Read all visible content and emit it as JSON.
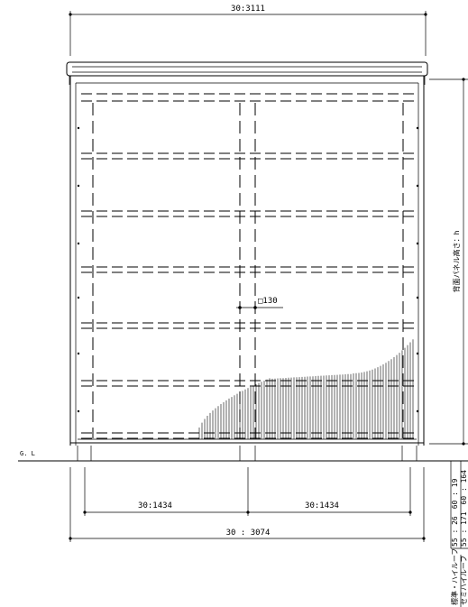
{
  "dimensions": {
    "top_width": "30:3111",
    "bottom_left": "30:1434",
    "bottom_right": "30:1434",
    "bottom_total": "30 : 3074",
    "post_size": "□130",
    "ground_line": "G. L",
    "panel_height": "背面パネル高さ：h"
  },
  "right_notes": {
    "col1": "55 : 26　60 : 19",
    "col2": "55 : 171　60 : 164"
  },
  "legend": {
    "line1": "標準・ハイルーフ",
    "line2": "セミハイルーフ"
  }
}
